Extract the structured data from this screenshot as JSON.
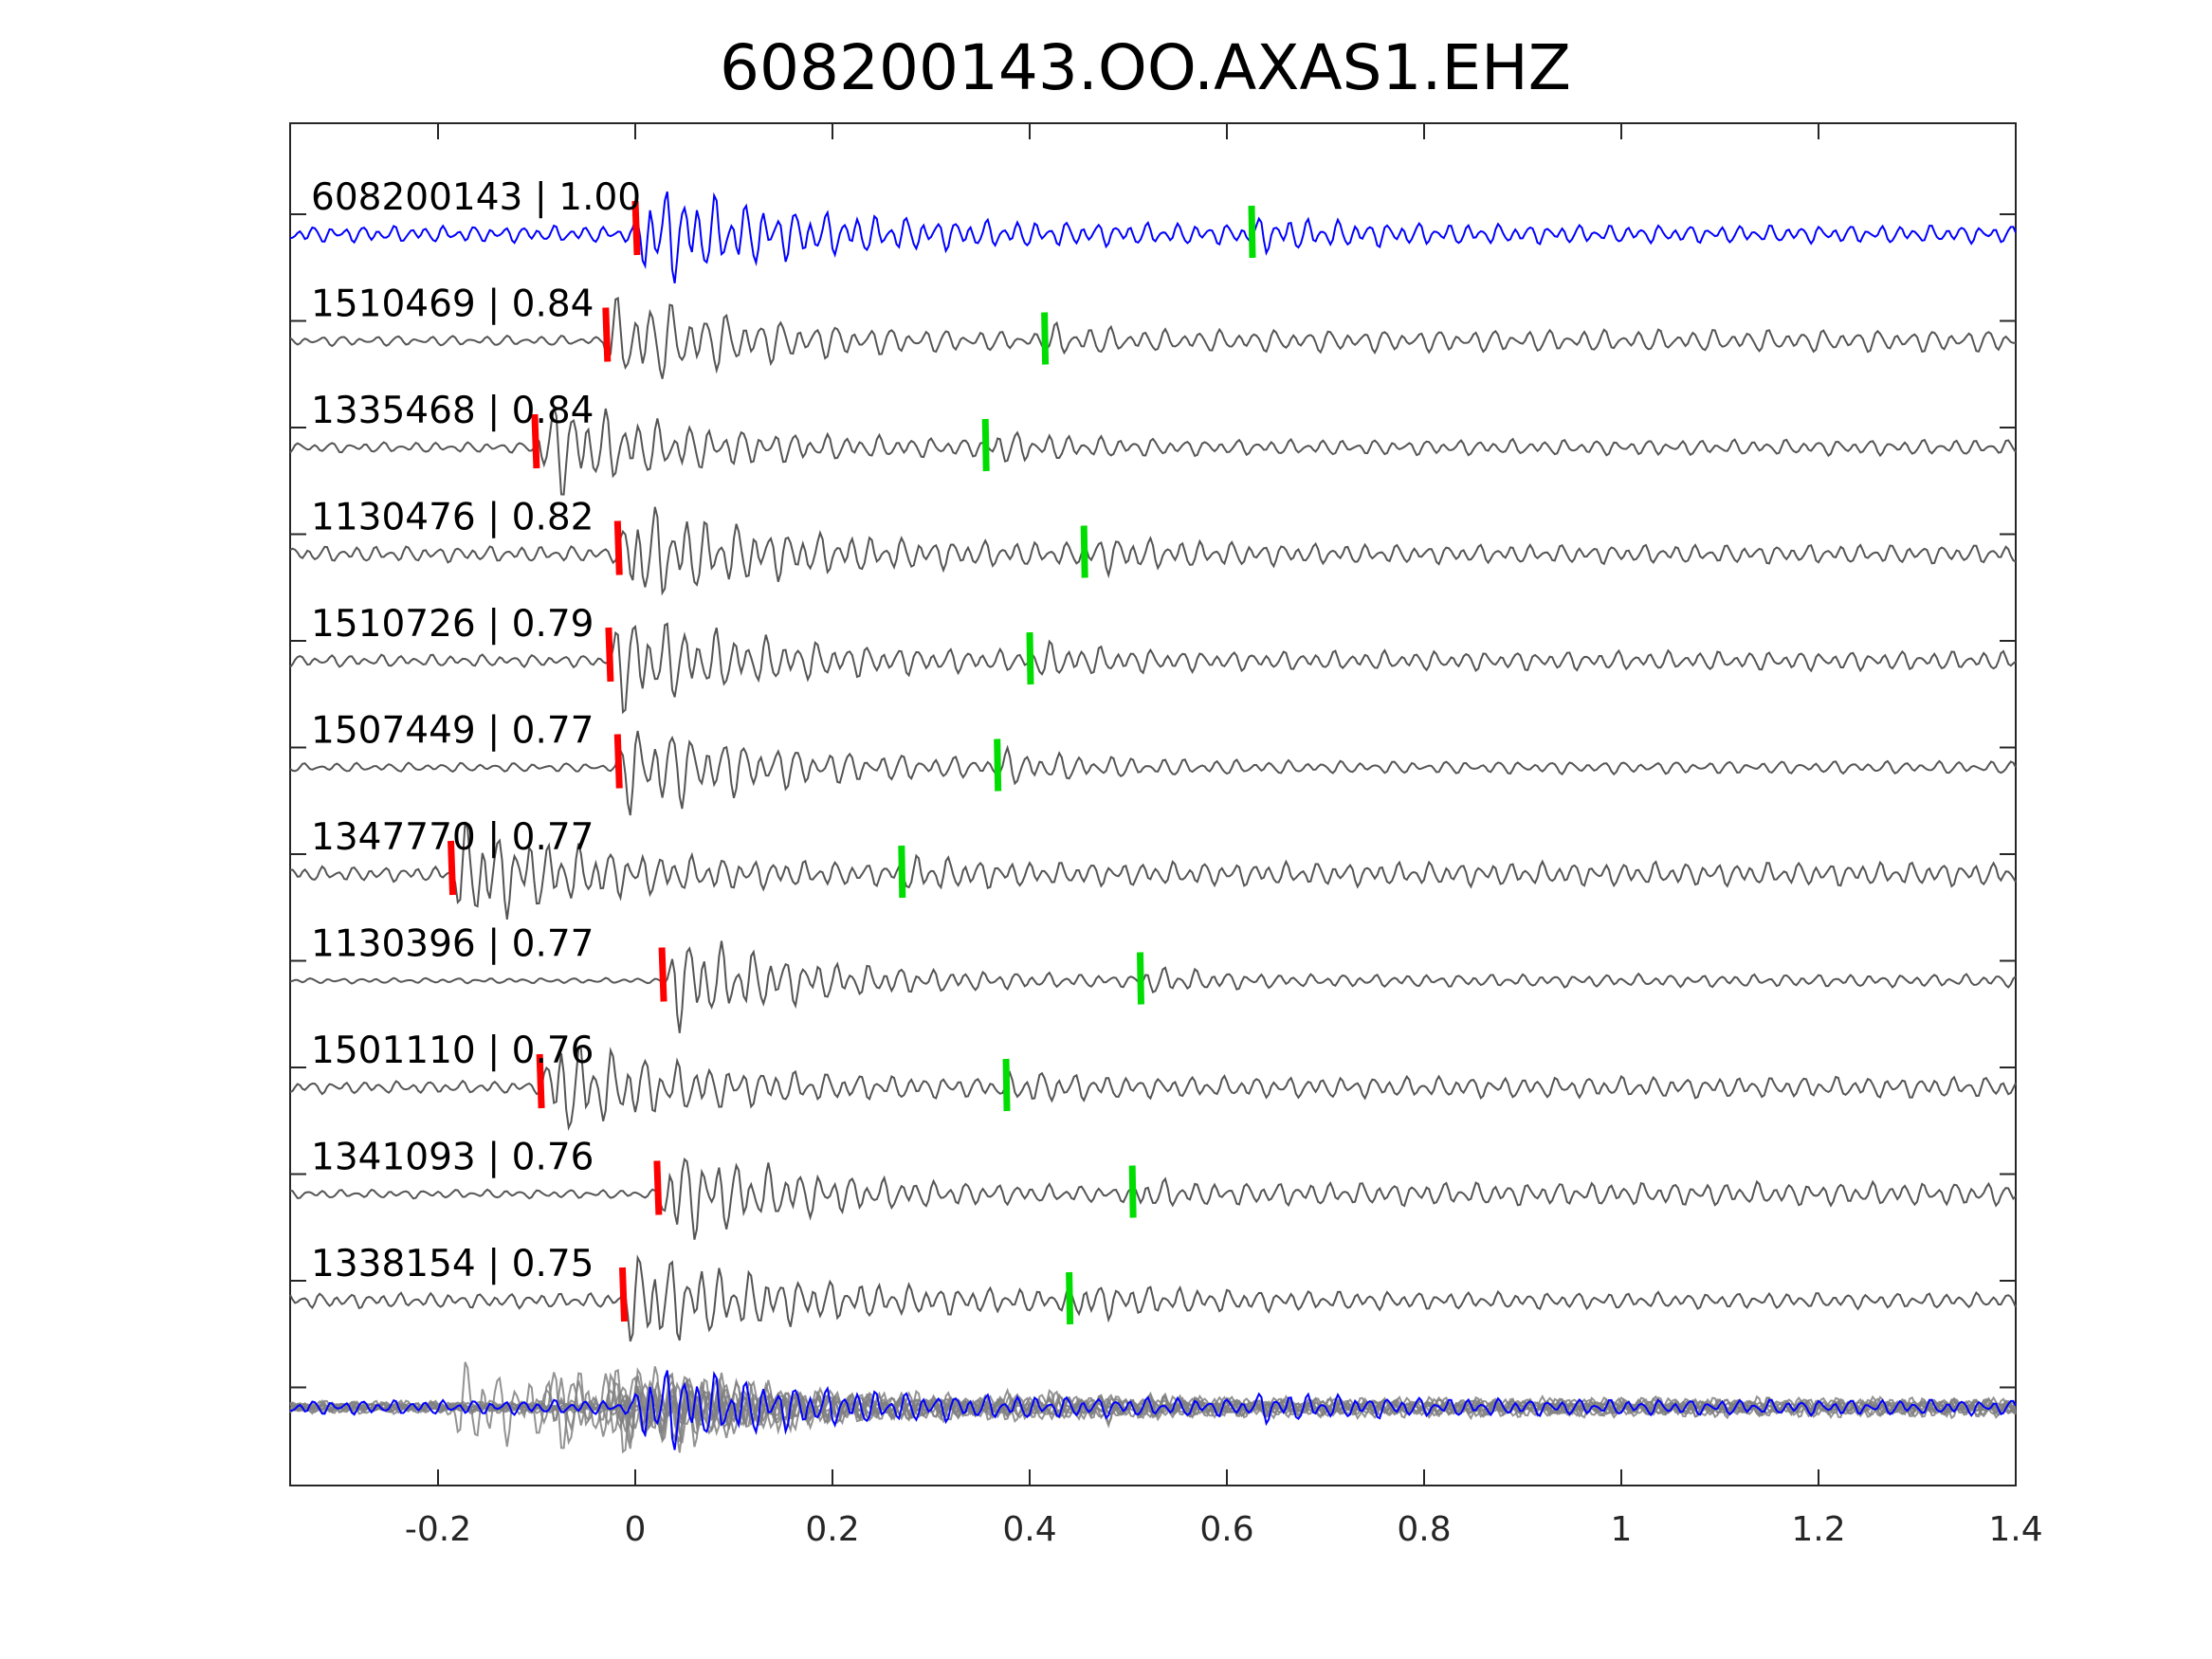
{
  "chart_data": {
    "type": "line",
    "title": "608200143.OO.AXAS1.EHZ",
    "xlabel": "",
    "ylabel": "",
    "xlim": [
      -0.35,
      1.4
    ],
    "xticks": [
      -0.2,
      0,
      0.2,
      0.4,
      0.6,
      0.8,
      1,
      1.2,
      1.4
    ],
    "xtick_labels": [
      "-0.2",
      "0",
      "0.2",
      "0.4",
      "0.6",
      "0.8",
      "1",
      "1.2",
      "1.4"
    ],
    "grid": false,
    "colors": {
      "target": "#0000ff",
      "template": "#555555",
      "stack": "#808080",
      "p_pick": "#ff0000",
      "s_pick": "#00dd00",
      "axis": "#262626"
    },
    "series": [
      {
        "id": "608200143",
        "label": "608200143 | 1.00",
        "cc": 1.0,
        "p_pick": 0.0,
        "s_pick": 0.625,
        "role": "target"
      },
      {
        "id": "1510469",
        "label": "1510469 | 0.84",
        "cc": 0.84,
        "p_pick": -0.03,
        "s_pick": 0.415,
        "role": "template"
      },
      {
        "id": "1335468",
        "label": "1335468 | 0.84",
        "cc": 0.84,
        "p_pick": -0.102,
        "s_pick": 0.355,
        "role": "template"
      },
      {
        "id": "1130476",
        "label": "1130476 | 0.82",
        "cc": 0.82,
        "p_pick": -0.018,
        "s_pick": 0.455,
        "role": "template"
      },
      {
        "id": "1510726",
        "label": "1510726 | 0.79",
        "cc": 0.79,
        "p_pick": -0.027,
        "s_pick": 0.4,
        "role": "template"
      },
      {
        "id": "1507449",
        "label": "1507449 | 0.77",
        "cc": 0.77,
        "p_pick": -0.018,
        "s_pick": 0.367,
        "role": "template"
      },
      {
        "id": "1347770",
        "label": "1347770 | 0.77",
        "cc": 0.77,
        "p_pick": -0.187,
        "s_pick": 0.27,
        "role": "template"
      },
      {
        "id": "1130396",
        "label": "1130396 | 0.77",
        "cc": 0.77,
        "p_pick": 0.027,
        "s_pick": 0.512,
        "role": "template"
      },
      {
        "id": "1501110",
        "label": "1501110 | 0.76",
        "cc": 0.76,
        "p_pick": -0.097,
        "s_pick": 0.376,
        "role": "template"
      },
      {
        "id": "1341093",
        "label": "1341093 | 0.76",
        "cc": 0.76,
        "p_pick": 0.022,
        "s_pick": 0.504,
        "role": "template"
      },
      {
        "id": "1338154",
        "label": "1338154 | 0.75",
        "cc": 0.75,
        "p_pick": -0.013,
        "s_pick": 0.44,
        "role": "template"
      }
    ],
    "stack": {
      "role": "overlay of all traces"
    }
  }
}
